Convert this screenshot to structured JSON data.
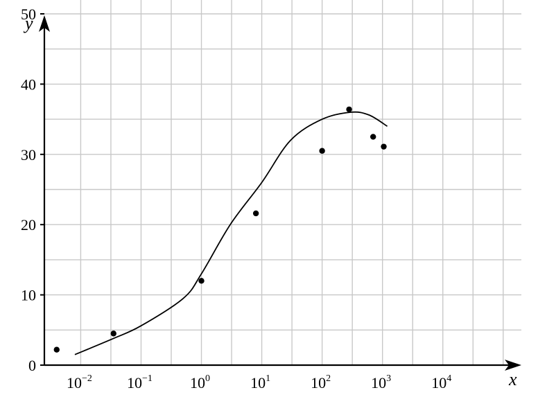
{
  "chart_data": {
    "type": "scatter",
    "title": "",
    "xlabel": "x",
    "ylabel": "y",
    "x_scale": "log",
    "xlim": [
      0.0025,
      200000
    ],
    "ylim": [
      0,
      50
    ],
    "grid": true,
    "y_ticks": [
      0,
      10,
      20,
      30,
      40,
      50
    ],
    "x_ticks": [
      {
        "value": 0.01,
        "base": "10",
        "exp": "−2"
      },
      {
        "value": 0.1,
        "base": "10",
        "exp": "−1"
      },
      {
        "value": 1,
        "base": "10",
        "exp": "0"
      },
      {
        "value": 10,
        "base": "10",
        "exp": "1"
      },
      {
        "value": 100,
        "base": "10",
        "exp": "2"
      },
      {
        "value": 1000,
        "base": "10",
        "exp": "3"
      },
      {
        "value": 10000,
        "base": "10",
        "exp": "4"
      }
    ],
    "series": [
      {
        "kind": "points",
        "x": [
          0.004,
          0.035,
          1.0,
          8.0,
          100,
          280,
          700,
          1050
        ],
        "y": [
          2.2,
          4.5,
          12.0,
          21.6,
          30.5,
          36.4,
          32.5,
          31.1
        ]
      },
      {
        "kind": "curve",
        "x": [
          0.008,
          0.035,
          0.1,
          0.5,
          1.0,
          3,
          10,
          30,
          100,
          300,
          600,
          1200
        ],
        "y": [
          1.5,
          3.8,
          5.6,
          9.5,
          13,
          20,
          26,
          32,
          35,
          36,
          35.6,
          34
        ]
      }
    ]
  }
}
